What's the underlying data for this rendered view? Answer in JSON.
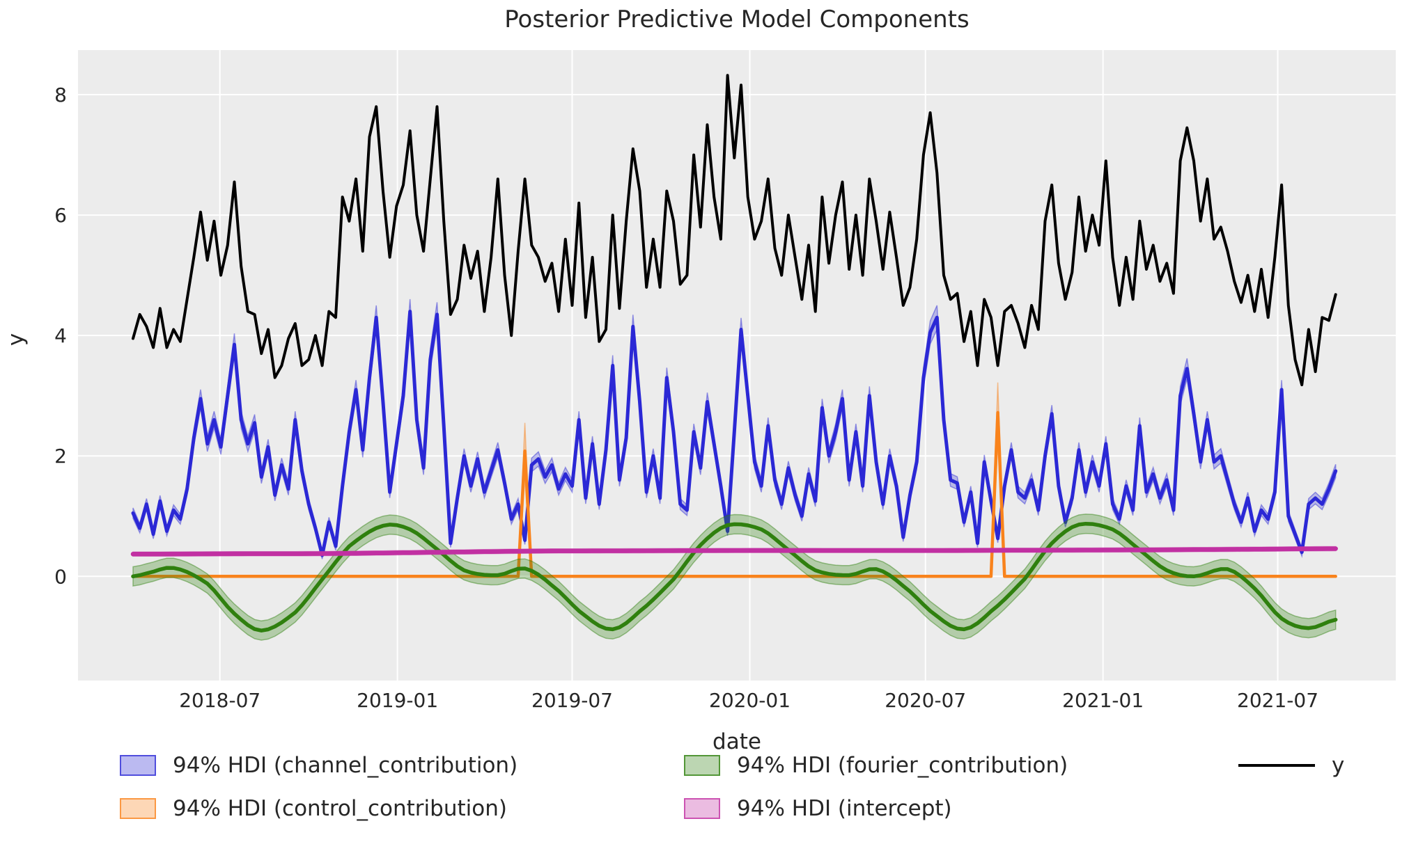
{
  "title": "Posterior Predictive Model Components",
  "x_axis": {
    "label": "date"
  },
  "y_axis": {
    "label": "y"
  },
  "colors": {
    "figure_bg": "#ffffff",
    "plot_bg": "#ececec",
    "grid": "#ffffff",
    "text": "#262626",
    "y_line": "#000000",
    "channel": "#2b28d5",
    "control": "#f9831c",
    "fourier": "#2f800e",
    "intercept": "#c130a2"
  },
  "legend": {
    "items": [
      {
        "label": "94% HDI (channel_contribution)",
        "type": "patch",
        "color": "#2b28d5"
      },
      {
        "label": "94% HDI (control_contribution)",
        "type": "patch",
        "color": "#f9831c"
      },
      {
        "label": "94% HDI (fourier_contribution)",
        "type": "patch",
        "color": "#2f800e"
      },
      {
        "label": "94% HDI (intercept)",
        "type": "patch",
        "color": "#c130a2"
      },
      {
        "label": "y",
        "type": "line",
        "color": "#000000"
      }
    ]
  },
  "chart_data": {
    "type": "line",
    "title": "Posterior Predictive Model Components",
    "xlabel": "date",
    "ylabel": "y",
    "x_start_date": "2018-04-02",
    "x_step_days": 7,
    "n_points": 179,
    "xlim_index": [
      -8.14,
      186.9
    ],
    "ylim": [
      -1.73,
      8.74
    ],
    "grid": true,
    "legend_position": "below",
    "x_ticks": [
      {
        "index": 12.86,
        "label": "2018-07"
      },
      {
        "index": 39.14,
        "label": "2019-01"
      },
      {
        "index": 65.0,
        "label": "2019-07"
      },
      {
        "index": 91.29,
        "label": "2020-01"
      },
      {
        "index": 117.29,
        "label": "2020-07"
      },
      {
        "index": 143.57,
        "label": "2021-01"
      },
      {
        "index": 169.43,
        "label": "2021-07"
      }
    ],
    "y_ticks": [
      {
        "value": 0,
        "label": "0"
      },
      {
        "value": 2,
        "label": "2"
      },
      {
        "value": 4,
        "label": "4"
      },
      {
        "value": 6,
        "label": "6"
      },
      {
        "value": 8,
        "label": "8"
      }
    ],
    "series": [
      {
        "name": "y",
        "kind": "line",
        "color": "#000000",
        "values": [
          3.95,
          4.35,
          4.15,
          3.8,
          4.45,
          3.8,
          4.1,
          3.9,
          4.6,
          5.3,
          6.05,
          5.25,
          5.9,
          5.0,
          5.5,
          6.55,
          5.15,
          4.4,
          4.35,
          3.7,
          4.1,
          3.3,
          3.5,
          3.95,
          4.2,
          3.5,
          3.6,
          4.0,
          3.5,
          4.4,
          4.3,
          6.3,
          5.9,
          6.6,
          5.4,
          7.3,
          7.8,
          6.4,
          5.3,
          6.15,
          6.5,
          7.4,
          6.0,
          5.4,
          6.6,
          7.8,
          5.9,
          4.35,
          4.6,
          5.5,
          4.95,
          5.4,
          4.4,
          5.3,
          6.6,
          5.0,
          4.0,
          5.4,
          6.6,
          5.5,
          5.3,
          4.9,
          5.2,
          4.4,
          5.6,
          4.5,
          6.2,
          4.3,
          5.3,
          3.9,
          4.1,
          6.0,
          4.45,
          5.9,
          7.1,
          6.4,
          4.8,
          5.6,
          4.8,
          6.4,
          5.9,
          4.85,
          5.0,
          7.0,
          5.8,
          7.5,
          6.3,
          5.6,
          8.32,
          6.95,
          8.16,
          6.3,
          5.6,
          5.9,
          6.6,
          5.45,
          5.0,
          6.0,
          5.3,
          4.6,
          5.5,
          4.4,
          6.3,
          5.2,
          6.0,
          6.55,
          5.1,
          6.0,
          5.0,
          6.6,
          5.9,
          5.1,
          6.05,
          5.3,
          4.5,
          4.8,
          5.6,
          7.0,
          7.7,
          6.7,
          5.0,
          4.6,
          4.7,
          3.9,
          4.4,
          3.5,
          4.6,
          4.3,
          3.5,
          4.4,
          4.5,
          4.2,
          3.8,
          4.5,
          4.1,
          5.9,
          6.5,
          5.2,
          4.6,
          5.05,
          6.3,
          5.4,
          6.0,
          5.5,
          6.9,
          5.3,
          4.5,
          5.3,
          4.6,
          5.9,
          5.1,
          5.5,
          4.9,
          5.2,
          4.7,
          6.9,
          7.45,
          6.9,
          5.9,
          6.6,
          5.6,
          5.8,
          5.4,
          4.9,
          4.55,
          5.0,
          4.4,
          5.1,
          4.3,
          5.3,
          6.5,
          4.5,
          3.6,
          3.18,
          4.1,
          3.4,
          4.3,
          4.25,
          4.68
        ]
      },
      {
        "name": "94% HDI (channel_contribution)",
        "kind": "line+band",
        "color": "#2b28d5",
        "band_opacity": 0.27,
        "band_rule": {
          "mode": "proportional",
          "base": 0.05,
          "factor": 0.035
        },
        "values": [
          1.05,
          0.8,
          1.2,
          0.7,
          1.25,
          0.75,
          1.1,
          0.95,
          1.45,
          2.3,
          2.95,
          2.2,
          2.6,
          2.15,
          3.0,
          3.85,
          2.6,
          2.2,
          2.55,
          1.65,
          2.15,
          1.35,
          1.85,
          1.45,
          2.6,
          1.75,
          1.2,
          0.8,
          0.35,
          0.9,
          0.5,
          1.5,
          2.4,
          3.1,
          2.1,
          3.3,
          4.3,
          2.9,
          1.4,
          2.2,
          3.0,
          4.4,
          2.6,
          1.8,
          3.6,
          4.35,
          2.5,
          0.55,
          1.3,
          2.0,
          1.5,
          1.95,
          1.4,
          1.75,
          2.1,
          1.55,
          0.95,
          1.2,
          0.6,
          1.85,
          1.95,
          1.65,
          1.85,
          1.45,
          1.7,
          1.5,
          2.6,
          1.3,
          2.2,
          1.2,
          2.1,
          3.5,
          1.6,
          2.3,
          4.15,
          2.9,
          1.4,
          2.0,
          1.3,
          3.3,
          2.4,
          1.2,
          1.1,
          2.4,
          1.8,
          2.9,
          2.2,
          1.5,
          0.75,
          2.4,
          4.1,
          3.0,
          1.9,
          1.5,
          2.5,
          1.6,
          1.2,
          1.8,
          1.35,
          1.0,
          1.7,
          1.25,
          2.8,
          2.0,
          2.4,
          2.95,
          1.6,
          2.4,
          1.5,
          3.0,
          1.9,
          1.2,
          2.0,
          1.5,
          0.65,
          1.35,
          1.9,
          3.3,
          4.05,
          4.3,
          2.6,
          1.6,
          1.55,
          0.9,
          1.4,
          0.55,
          1.9,
          1.25,
          0.63,
          1.5,
          2.1,
          1.4,
          1.3,
          1.6,
          1.1,
          2.0,
          2.7,
          1.5,
          0.9,
          1.3,
          2.1,
          1.4,
          1.9,
          1.5,
          2.2,
          1.2,
          0.95,
          1.5,
          1.1,
          2.5,
          1.4,
          1.7,
          1.3,
          1.6,
          1.1,
          3.0,
          3.45,
          2.7,
          1.9,
          2.6,
          1.9,
          2.0,
          1.6,
          1.2,
          0.9,
          1.3,
          0.75,
          1.1,
          0.95,
          1.4,
          3.1,
          1.0,
          0.7,
          0.4,
          1.2,
          1.3,
          1.2,
          1.45,
          1.75
        ]
      },
      {
        "name": "94% HDI (control_contribution)",
        "kind": "line+band",
        "color": "#f9831c",
        "band_opacity": 0.32,
        "baseline": 0,
        "baseline_band_half_width": 0.012,
        "spikes": [
          {
            "index": 58,
            "mean": 2.08,
            "hdi_lo": 1.62,
            "hdi_hi": 2.55,
            "approx_date": "2019-05-13"
          },
          {
            "index": 128,
            "mean": 2.72,
            "hdi_lo": 2.2,
            "hdi_hi": 3.22,
            "approx_date": "2020-09-14"
          }
        ]
      },
      {
        "name": "94% HDI (fourier_contribution)",
        "kind": "smooth+band",
        "color": "#2f800e",
        "band_opacity": 0.3,
        "band_half_width": 0.16,
        "anchors": [
          [
            0,
            0.0
          ],
          [
            2,
            0.05
          ],
          [
            6,
            0.14
          ],
          [
            11,
            -0.12
          ],
          [
            15,
            -0.62
          ],
          [
            19,
            -0.9
          ],
          [
            24,
            -0.6
          ],
          [
            28,
            -0.05
          ],
          [
            32,
            0.5
          ],
          [
            37,
            0.84
          ],
          [
            41,
            0.78
          ],
          [
            45,
            0.45
          ],
          [
            49,
            0.1
          ],
          [
            54,
            0.02
          ],
          [
            58,
            0.13
          ],
          [
            62,
            -0.15
          ],
          [
            67,
            -0.66
          ],
          [
            71,
            -0.88
          ],
          [
            75,
            -0.58
          ],
          [
            80,
            -0.05
          ],
          [
            84,
            0.52
          ],
          [
            88,
            0.85
          ],
          [
            93,
            0.78
          ],
          [
            97,
            0.44
          ],
          [
            101,
            0.1
          ],
          [
            106,
            0.02
          ],
          [
            110,
            0.12
          ],
          [
            114,
            -0.16
          ],
          [
            119,
            -0.66
          ],
          [
            123,
            -0.88
          ],
          [
            127,
            -0.58
          ],
          [
            132,
            -0.04
          ],
          [
            136,
            0.55
          ],
          [
            140,
            0.86
          ],
          [
            145,
            0.78
          ],
          [
            149,
            0.44
          ],
          [
            153,
            0.1
          ],
          [
            157,
            0.0
          ],
          [
            162,
            0.12
          ],
          [
            166,
            -0.2
          ],
          [
            170,
            -0.7
          ],
          [
            174,
            -0.86
          ],
          [
            178,
            -0.72
          ]
        ]
      },
      {
        "name": "94% HDI (intercept)",
        "kind": "smooth+band",
        "color": "#c130a2",
        "band_opacity": 0.3,
        "band_half_width": 0.035,
        "anchors": [
          [
            0,
            0.37
          ],
          [
            15,
            0.375
          ],
          [
            30,
            0.38
          ],
          [
            45,
            0.4
          ],
          [
            60,
            0.42
          ],
          [
            75,
            0.425
          ],
          [
            90,
            0.43
          ],
          [
            105,
            0.43
          ],
          [
            120,
            0.43
          ],
          [
            135,
            0.435
          ],
          [
            150,
            0.44
          ],
          [
            165,
            0.45
          ],
          [
            178,
            0.46
          ]
        ]
      }
    ]
  }
}
